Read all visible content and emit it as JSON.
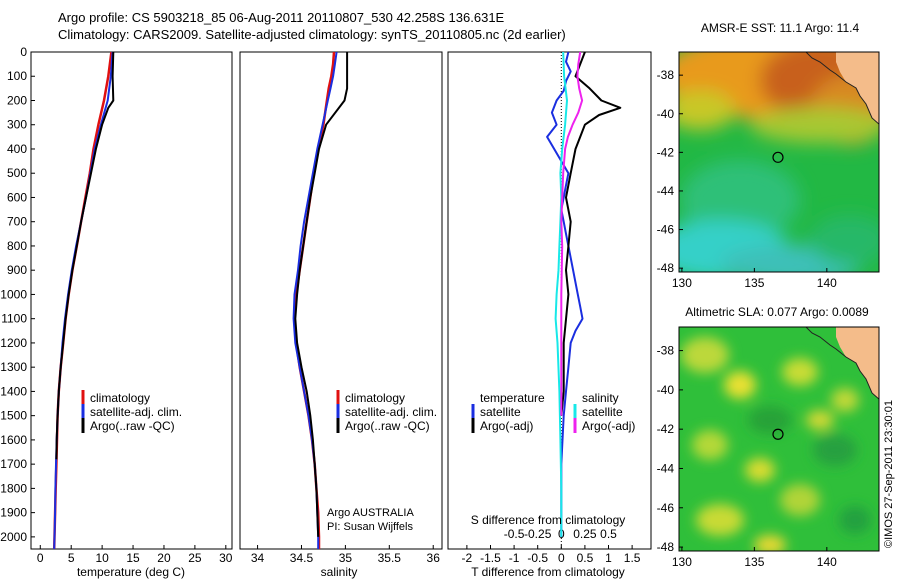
{
  "header": {
    "line1": "Argo profile: CS 5903218_85 06-Aug-2011 20110807_530 42.258S 136.631E",
    "line2": "Climatology: CARS2009. Satellite-adjusted climatology: synTS_20110805.nc (2d earlier)"
  },
  "colors": {
    "climatology": "#e01010",
    "satellite": "#1a2ee0",
    "argo": "#000000",
    "salinity_satellite": "#18e8e8",
    "salinity_argo": "#ee22ee"
  },
  "panels": {
    "temperature": {
      "xlabel": "temperature (deg C)"
    },
    "salinity": {
      "xlabel": "salinity",
      "note_line1": "Argo AUSTRALIA",
      "note_line2": "PI: Susan Wijffels"
    },
    "difference": {
      "xlabel": "T difference from climatology",
      "s_label": "S difference from climatology",
      "legend_temperature_header": "temperature",
      "legend_salinity_header": "salinity"
    }
  },
  "legend": {
    "climatology": "climatology",
    "satellite_adj": "satellite-adj. clim.",
    "argo_raw": "Argo(..raw -QC)",
    "satellite": "satellite",
    "argo_adj": "Argo(-adj)"
  },
  "maps": {
    "sst_title": "AMSR-E SST: 11.1 Argo: 11.4",
    "sla_title": "Altimetric SLA: 0.077 Argo: 0.0089",
    "lat_ticks": [
      "-38",
      "-40",
      "-42",
      "-44",
      "-46",
      "-48"
    ],
    "lon_ticks": [
      "130",
      "135",
      "140"
    ],
    "float_location": {
      "lon": 136.631,
      "lat": -42.258
    }
  },
  "footer": {
    "stamp": "©IMOS 27-Sep-2011 23:30:01"
  },
  "chart_data": [
    {
      "type": "line",
      "ylabel": "",
      "xlabel": "temperature (deg C)",
      "ylim": [
        2050,
        0
      ],
      "xlim": [
        -1.5,
        31
      ],
      "x_ticks": [
        "0",
        "5",
        "10",
        "15",
        "20",
        "25",
        "30"
      ],
      "y_ticks": [
        "0",
        "100",
        "200",
        "300",
        "400",
        "500",
        "600",
        "700",
        "800",
        "900",
        "1000",
        "1100",
        "1200",
        "1300",
        "1400",
        "1500",
        "1600",
        "1700",
        "1800",
        "1900",
        "2000"
      ],
      "series": [
        {
          "name": "climatology",
          "depth": [
            0,
            100,
            200,
            300,
            400,
            500,
            600,
            700,
            800,
            900,
            1000,
            1100,
            1200,
            1300,
            1400,
            1500,
            1600,
            1700,
            1800,
            1900,
            2000,
            2050
          ],
          "values": [
            11.5,
            11.0,
            10.3,
            9.4,
            8.6,
            8.0,
            7.3,
            6.6,
            5.9,
            5.2,
            4.6,
            4.1,
            3.7,
            3.3,
            3.0,
            2.8,
            2.7,
            2.6,
            2.5,
            2.4,
            2.3,
            2.25
          ]
        },
        {
          "name": "satellite-adj. clim.",
          "depth": [
            0,
            100,
            200,
            300,
            400,
            500,
            600,
            700,
            800,
            900,
            1000,
            1100,
            1200,
            1300,
            1400,
            1500,
            1600,
            1700,
            1800,
            1900,
            2000,
            2050
          ],
          "values": [
            11.7,
            11.4,
            10.9,
            9.8,
            8.8,
            8.1,
            7.4,
            6.6,
            5.8,
            5.1,
            4.5,
            4.0,
            3.6,
            3.3,
            3.0,
            2.8,
            2.65,
            2.55,
            2.45,
            2.4,
            2.3,
            2.25
          ]
        },
        {
          "name": "Argo(..raw -QC)",
          "depth": [
            0,
            100,
            200,
            230,
            300,
            400,
            500,
            600,
            700,
            800,
            900,
            1000,
            1100,
            1200,
            1300,
            1400,
            1500,
            1600,
            1680
          ],
          "values": [
            11.8,
            11.7,
            11.8,
            11.0,
            10.0,
            9.0,
            8.2,
            7.4,
            6.6,
            5.9,
            5.2,
            4.6,
            4.1,
            3.7,
            3.3,
            3.0,
            2.8,
            2.65,
            2.6
          ]
        }
      ]
    },
    {
      "type": "line",
      "ylabel": "",
      "xlabel": "salinity",
      "ylim": [
        2050,
        0
      ],
      "xlim": [
        33.8,
        36.1
      ],
      "x_ticks": [
        "34",
        "34.5",
        "35",
        "35.5",
        "36"
      ],
      "series": [
        {
          "name": "climatology",
          "depth": [
            0,
            50,
            100,
            150,
            200,
            300,
            400,
            500,
            600,
            700,
            800,
            900,
            1000,
            1100,
            1200,
            1300,
            1400,
            1500,
            1600,
            1700,
            1800,
            1900,
            2000,
            2050
          ],
          "values": [
            34.87,
            34.86,
            34.84,
            34.81,
            34.79,
            34.75,
            34.69,
            34.64,
            34.6,
            34.56,
            34.52,
            34.48,
            34.44,
            34.42,
            34.44,
            34.48,
            34.53,
            34.58,
            34.62,
            34.65,
            34.67,
            34.69,
            34.7,
            34.7
          ]
        },
        {
          "name": "satellite-adj. clim.",
          "depth": [
            0,
            50,
            100,
            150,
            200,
            300,
            400,
            500,
            600,
            700,
            800,
            900,
            1000,
            1100,
            1200,
            1300,
            1400,
            1500,
            1600,
            1700,
            1800,
            1900,
            2000,
            2050
          ],
          "values": [
            34.9,
            34.88,
            34.86,
            34.83,
            34.8,
            34.74,
            34.68,
            34.63,
            34.58,
            34.53,
            34.49,
            34.46,
            34.42,
            34.41,
            34.43,
            34.48,
            34.53,
            34.58,
            34.62,
            34.65,
            34.67,
            34.68,
            34.69,
            34.69
          ]
        },
        {
          "name": "Argo(..raw -QC)",
          "depth": [
            0,
            100,
            150,
            200,
            300,
            400,
            500,
            600,
            700,
            800,
            900,
            1000,
            1100,
            1200,
            1300,
            1400,
            1500,
            1600,
            1700,
            1800,
            1900,
            2000
          ],
          "values": [
            35.02,
            35.02,
            35.02,
            34.99,
            34.78,
            34.7,
            34.65,
            34.6,
            34.56,
            34.52,
            34.48,
            34.45,
            34.43,
            34.45,
            34.5,
            34.56,
            34.6,
            34.63,
            34.65,
            34.67,
            34.68,
            34.69
          ]
        }
      ]
    },
    {
      "type": "line",
      "ylabel": "",
      "xlabel": "T difference from climatology",
      "ylim": [
        2050,
        0
      ],
      "xlim": [
        -2.4,
        1.9
      ],
      "x_ticks": [
        "-2",
        "-1.5",
        "-1",
        "-0.5",
        "0",
        "0.5",
        "1",
        "1.5"
      ],
      "secondary_axis": {
        "label": "S difference from climatology",
        "ticks": [
          "-0.5",
          "-0.25",
          "0",
          "0.25",
          "0.5"
        ]
      },
      "series": [
        {
          "name": "temperature satellite",
          "depth": [
            0,
            40,
            80,
            120,
            160,
            200,
            250,
            300,
            350,
            400,
            450,
            500,
            550,
            600,
            650,
            700,
            750,
            800,
            900,
            1000,
            1050,
            1100,
            1150,
            1200,
            1300,
            1400,
            1500,
            1700,
            1900,
            2000
          ],
          "values": [
            0.15,
            0.1,
            0.2,
            0.1,
            0.05,
            -0.1,
            -0.2,
            -0.1,
            -0.3,
            -0.15,
            0.0,
            0.15,
            0.1,
            0.05,
            0.0,
            0.05,
            0.1,
            0.15,
            0.25,
            0.35,
            0.4,
            0.45,
            0.3,
            0.2,
            0.15,
            0.1,
            0.05,
            0.0,
            0.0,
            0.0
          ]
        },
        {
          "name": "temperature Argo(-adj)",
          "depth": [
            0,
            50,
            100,
            150,
            200,
            230,
            260,
            300,
            350,
            400,
            500,
            600,
            700,
            800,
            900,
            1000,
            1200,
            1400,
            1500
          ],
          "values": [
            0.5,
            0.4,
            0.3,
            0.6,
            0.85,
            1.25,
            0.8,
            0.5,
            0.4,
            0.3,
            0.2,
            0.1,
            0.2,
            0.15,
            0.1,
            0.15,
            0.05,
            0.05,
            0.0
          ]
        },
        {
          "name": "salinity satellite",
          "depth": [
            0,
            100,
            200,
            300,
            400,
            500,
            600,
            700,
            800,
            900,
            1000,
            1100,
            1200,
            1400,
            1600,
            1800,
            2000
          ],
          "values": [
            0.02,
            0.03,
            0.06,
            0.04,
            0.01,
            -0.01,
            0.0,
            -0.01,
            -0.02,
            -0.03,
            -0.05,
            -0.06,
            -0.04,
            -0.02,
            -0.01,
            0.0,
            0.0
          ]
        },
        {
          "name": "salinity Argo(-adj)",
          "depth": [
            0,
            50,
            100,
            150,
            200,
            250,
            300,
            350,
            400,
            500,
            600,
            700,
            800,
            1000,
            1200,
            1400,
            1500
          ],
          "values": [
            0.2,
            0.18,
            0.17,
            0.19,
            0.22,
            0.18,
            0.12,
            0.07,
            0.04,
            0.02,
            0.01,
            0.0,
            0.01,
            0.0,
            0.0,
            0.0,
            0.0
          ]
        }
      ]
    }
  ]
}
